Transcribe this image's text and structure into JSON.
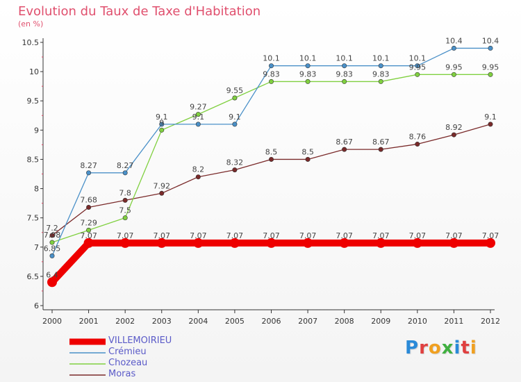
{
  "chart_data": {
    "type": "line",
    "title": "Evolution du Taux de Taxe d'Habitation",
    "subtitle": "(en %)",
    "x": [
      "2000",
      "2001",
      "2002",
      "2003",
      "2004",
      "2005",
      "2006",
      "2007",
      "2008",
      "2009",
      "2010",
      "2011",
      "2012"
    ],
    "ylim": [
      6,
      10.5
    ],
    "yticks": [
      "6",
      "6.5",
      "7",
      "7.5",
      "8",
      "8.5",
      "9",
      "9.5",
      "10",
      "10.5"
    ],
    "grid": false,
    "legend_position": "bottom-left",
    "series": [
      {
        "name": "VILLEMOIRIEU",
        "color": "#ee0000",
        "values": [
          6.4,
          7.07,
          7.07,
          7.07,
          7.07,
          7.07,
          7.07,
          7.07,
          7.07,
          7.07,
          7.07,
          7.07,
          7.07
        ],
        "labels": [
          "6.4",
          "7.07",
          "7.07",
          "7.07",
          "7.07",
          "7.07",
          "7.07",
          "7.07",
          "7.07",
          "7.07",
          "7.07",
          "7.07",
          "7.07"
        ]
      },
      {
        "name": "Crémieu",
        "color": "#4a90c8",
        "values": [
          6.85,
          8.27,
          8.27,
          9.1,
          9.1,
          9.1,
          10.1,
          10.1,
          10.1,
          10.1,
          10.1,
          10.4,
          10.4
        ],
        "labels": [
          "6.85",
          "8.27",
          "8.27",
          "9.1",
          "9.1",
          "9.1",
          "10.1",
          "10.1",
          "10.1",
          "10.1",
          "10.1",
          "10.4",
          "10.4"
        ]
      },
      {
        "name": "Chozeau",
        "color": "#80d040",
        "values": [
          7.08,
          7.29,
          7.5,
          9,
          9.27,
          9.55,
          9.83,
          9.83,
          9.83,
          9.83,
          9.95,
          9.95,
          9.95
        ],
        "labels": [
          "7.08",
          "7.29",
          "7.5",
          "9",
          "9.27",
          "9.55",
          "9.83",
          "9.83",
          "9.83",
          "9.83",
          "9.95",
          "9.95",
          "9.95"
        ]
      },
      {
        "name": "Moras",
        "color": "#7a2a2a",
        "values": [
          7.2,
          7.68,
          7.8,
          7.92,
          8.2,
          8.32,
          8.5,
          8.5,
          8.67,
          8.67,
          8.76,
          8.92,
          9.1
        ],
        "labels": [
          "7.2",
          "7.68",
          "7.8",
          "7.92",
          "8.2",
          "8.32",
          "8.5",
          "8.5",
          "8.67",
          "8.67",
          "8.76",
          "8.92",
          "9.1"
        ]
      }
    ]
  },
  "logo": {
    "letters": [
      "P",
      "r",
      "o",
      "x",
      "i",
      "t",
      "i"
    ],
    "colors": [
      "#2a8ad8",
      "#e04040",
      "#f0a020",
      "#40b040",
      "#2a8ad8",
      "#e04040",
      "#f0a020"
    ]
  }
}
